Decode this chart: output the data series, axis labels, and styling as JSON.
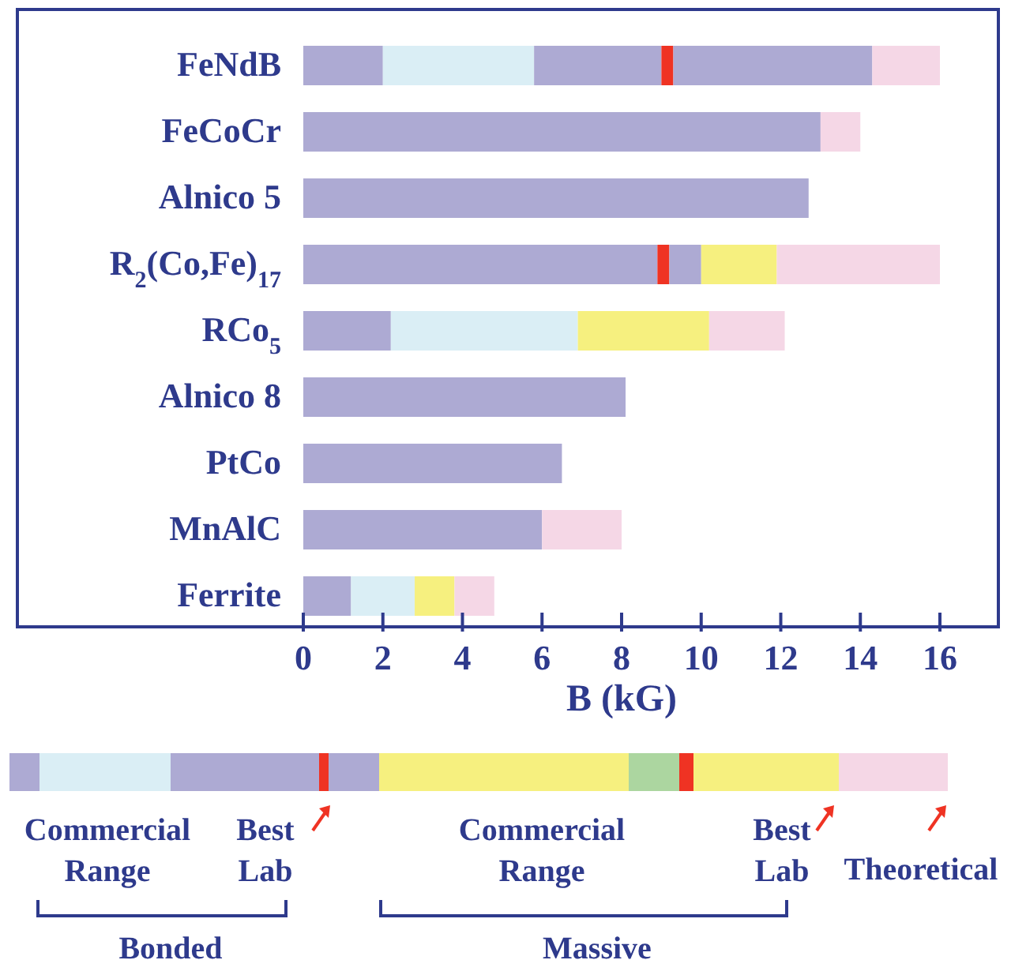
{
  "chart_data": {
    "type": "bar",
    "orientation": "horizontal",
    "stacked": true,
    "xlabel": "B (kG)",
    "categories": [
      "FeNdB",
      "FeCoCr",
      "Alnico 5",
      "R$_{2}$(Co,Fe)$_{17}$",
      "RCo$_{5}$",
      "Alnico 8",
      "PtCo",
      "MnAlC",
      "Ferrite"
    ],
    "series": [
      {
        "values": [
          2.0,
          13.0,
          12.7,
          8.9,
          2.2,
          8.1,
          6.5,
          6.0,
          1.2
        ],
        "colors": [
          "#adaad3",
          "#adaad3",
          "#adaad3",
          "#adaad3",
          "#adaad3",
          "#adaad3",
          "#adaad3",
          "#adaad3",
          "#adaad3"
        ]
      },
      {
        "values": [
          3.8,
          1.0,
          null,
          0.3,
          4.7,
          null,
          null,
          2.0,
          1.6
        ],
        "colors": [
          "#daeef5",
          "#f5d7e6",
          null,
          "#ef3323",
          "#daeef5",
          null,
          null,
          "#f5d7e6",
          "#daeef5"
        ]
      },
      {
        "values": [
          3.2,
          null,
          null,
          0.8,
          3.3,
          null,
          null,
          null,
          1.0
        ],
        "colors": [
          "#adaad3",
          null,
          null,
          "#adaad3",
          "#f6f07f",
          null,
          null,
          null,
          "#f6f07f"
        ]
      },
      {
        "values": [
          0.3,
          null,
          null,
          1.9,
          1.9,
          null,
          null,
          null,
          1.0
        ],
        "colors": [
          "#ef3323",
          null,
          null,
          "#f6f07f",
          "#f5d7e6",
          null,
          null,
          null,
          "#f5d7e6"
        ]
      },
      {
        "values": [
          5.0,
          null,
          null,
          4.1,
          null,
          null,
          null,
          null,
          null
        ],
        "colors": [
          "#adaad3",
          null,
          null,
          "#f5d7e6",
          null,
          null,
          null,
          null,
          null
        ]
      },
      {
        "values": [
          1.7,
          null,
          null,
          null,
          null,
          null,
          null,
          null,
          null
        ],
        "colors": [
          "#f5d7e6",
          null,
          null,
          null,
          null,
          null,
          null,
          null,
          null
        ]
      }
    ],
    "xlim": [
      0,
      16
    ],
    "xticks": [
      0,
      2,
      4,
      6,
      8,
      10,
      12,
      14,
      16
    ],
    "grid": false,
    "annotations": [
      "Commercial Range",
      "Best Lab",
      "Commercial Range",
      "Best Lab",
      "Theoretical",
      "Bonded",
      "Massive"
    ]
  }
}
